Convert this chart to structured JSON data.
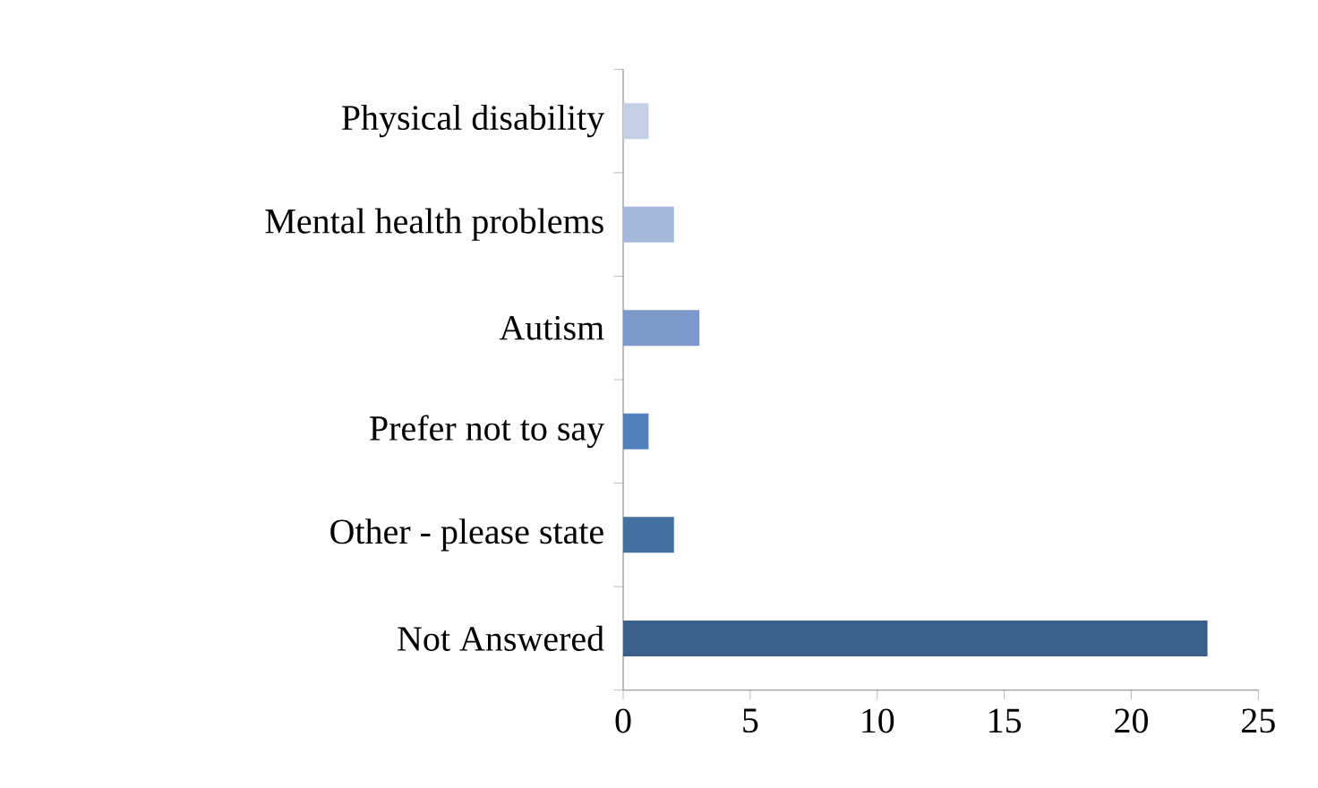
{
  "chart_data": {
    "type": "bar",
    "orientation": "horizontal",
    "categories": [
      "Physical disability",
      "Mental health problems",
      "Autism",
      "Prefer not to say",
      "Other - please state",
      "Not Answered"
    ],
    "values": [
      1,
      2,
      3,
      1,
      2,
      23
    ],
    "colors": [
      "#c3cfe5",
      "#a5b9dc",
      "#7b9acb",
      "#5180bd",
      "#44709f",
      "#3a5f8b"
    ],
    "xlim": [
      0,
      25
    ],
    "xticks": [
      0,
      5,
      10,
      15,
      20,
      25
    ]
  }
}
